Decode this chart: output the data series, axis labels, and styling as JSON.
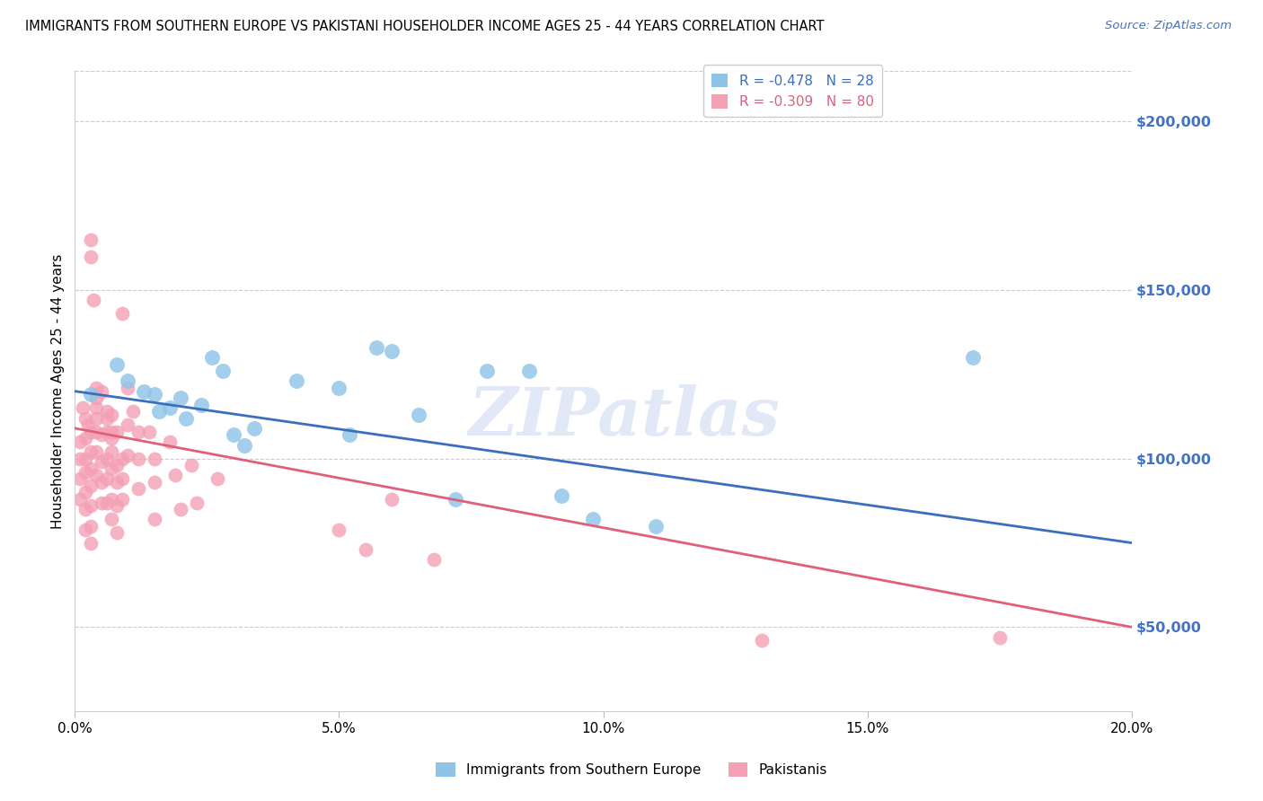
{
  "title": "IMMIGRANTS FROM SOUTHERN EUROPE VS PAKISTANI HOUSEHOLDER INCOME AGES 25 - 44 YEARS CORRELATION CHART",
  "source": "Source: ZipAtlas.com",
  "xlabel_ticks": [
    "0.0%",
    "5.0%",
    "10.0%",
    "15.0%",
    "20.0%"
  ],
  "xlabel_tick_vals": [
    0.0,
    0.05,
    0.1,
    0.15,
    0.2
  ],
  "ylabel_ticks": [
    "$50,000",
    "$100,000",
    "$150,000",
    "$200,000"
  ],
  "ylabel_tick_vals": [
    50000,
    100000,
    150000,
    200000
  ],
  "xlim": [
    0.0,
    0.2
  ],
  "ylim": [
    25000,
    215000
  ],
  "ylabel": "Householder Income Ages 25 - 44 years",
  "legend_label1": "Immigrants from Southern Europe",
  "legend_label2": "Pakistanis",
  "R1": -0.478,
  "N1": 28,
  "R2": -0.309,
  "N2": 80,
  "color_blue": "#8ec4e8",
  "color_pink": "#f4a0b5",
  "line_blue": "#3a6fbf",
  "line_pink": "#e0607a",
  "watermark": "ZIPatlas",
  "blue_line_x": [
    0.0,
    0.2
  ],
  "blue_line_y": [
    120000,
    75000
  ],
  "pink_line_x": [
    0.0,
    0.2
  ],
  "pink_line_y": [
    109000,
    50000
  ],
  "blue_points": [
    [
      0.003,
      119000
    ],
    [
      0.008,
      128000
    ],
    [
      0.01,
      123000
    ],
    [
      0.013,
      120000
    ],
    [
      0.015,
      119000
    ],
    [
      0.016,
      114000
    ],
    [
      0.018,
      115000
    ],
    [
      0.02,
      118000
    ],
    [
      0.021,
      112000
    ],
    [
      0.024,
      116000
    ],
    [
      0.026,
      130000
    ],
    [
      0.028,
      126000
    ],
    [
      0.03,
      107000
    ],
    [
      0.032,
      104000
    ],
    [
      0.034,
      109000
    ],
    [
      0.042,
      123000
    ],
    [
      0.05,
      121000
    ],
    [
      0.052,
      107000
    ],
    [
      0.057,
      133000
    ],
    [
      0.06,
      132000
    ],
    [
      0.065,
      113000
    ],
    [
      0.072,
      88000
    ],
    [
      0.078,
      126000
    ],
    [
      0.086,
      126000
    ],
    [
      0.092,
      89000
    ],
    [
      0.098,
      82000
    ],
    [
      0.11,
      80000
    ],
    [
      0.17,
      130000
    ]
  ],
  "pink_points": [
    [
      0.001,
      105000
    ],
    [
      0.001,
      100000
    ],
    [
      0.001,
      94000
    ],
    [
      0.001,
      88000
    ],
    [
      0.0015,
      115000
    ],
    [
      0.002,
      112000
    ],
    [
      0.002,
      106000
    ],
    [
      0.002,
      100000
    ],
    [
      0.002,
      96000
    ],
    [
      0.002,
      90000
    ],
    [
      0.002,
      85000
    ],
    [
      0.002,
      79000
    ],
    [
      0.0025,
      110000
    ],
    [
      0.003,
      108000
    ],
    [
      0.003,
      102000
    ],
    [
      0.003,
      97000
    ],
    [
      0.003,
      92000
    ],
    [
      0.003,
      86000
    ],
    [
      0.003,
      80000
    ],
    [
      0.003,
      75000
    ],
    [
      0.003,
      165000
    ],
    [
      0.003,
      160000
    ],
    [
      0.0035,
      147000
    ],
    [
      0.004,
      121000
    ],
    [
      0.004,
      115000
    ],
    [
      0.004,
      108000
    ],
    [
      0.004,
      102000
    ],
    [
      0.004,
      95000
    ],
    [
      0.004,
      118000
    ],
    [
      0.004,
      112000
    ],
    [
      0.005,
      107000
    ],
    [
      0.005,
      99000
    ],
    [
      0.005,
      93000
    ],
    [
      0.005,
      87000
    ],
    [
      0.005,
      120000
    ],
    [
      0.006,
      112000
    ],
    [
      0.006,
      108000
    ],
    [
      0.006,
      100000
    ],
    [
      0.006,
      94000
    ],
    [
      0.006,
      87000
    ],
    [
      0.006,
      114000
    ],
    [
      0.007,
      108000
    ],
    [
      0.007,
      102000
    ],
    [
      0.007,
      97000
    ],
    [
      0.007,
      88000
    ],
    [
      0.007,
      82000
    ],
    [
      0.007,
      113000
    ],
    [
      0.007,
      106000
    ],
    [
      0.008,
      98000
    ],
    [
      0.008,
      93000
    ],
    [
      0.008,
      86000
    ],
    [
      0.008,
      78000
    ],
    [
      0.008,
      108000
    ],
    [
      0.009,
      100000
    ],
    [
      0.009,
      94000
    ],
    [
      0.009,
      88000
    ],
    [
      0.009,
      143000
    ],
    [
      0.01,
      121000
    ],
    [
      0.01,
      110000
    ],
    [
      0.01,
      101000
    ],
    [
      0.011,
      114000
    ],
    [
      0.012,
      108000
    ],
    [
      0.012,
      100000
    ],
    [
      0.012,
      91000
    ],
    [
      0.014,
      108000
    ],
    [
      0.015,
      100000
    ],
    [
      0.015,
      93000
    ],
    [
      0.015,
      82000
    ],
    [
      0.018,
      105000
    ],
    [
      0.019,
      95000
    ],
    [
      0.02,
      85000
    ],
    [
      0.022,
      98000
    ],
    [
      0.023,
      87000
    ],
    [
      0.027,
      94000
    ],
    [
      0.05,
      79000
    ],
    [
      0.055,
      73000
    ],
    [
      0.06,
      88000
    ],
    [
      0.068,
      70000
    ],
    [
      0.13,
      46000
    ],
    [
      0.175,
      47000
    ]
  ]
}
